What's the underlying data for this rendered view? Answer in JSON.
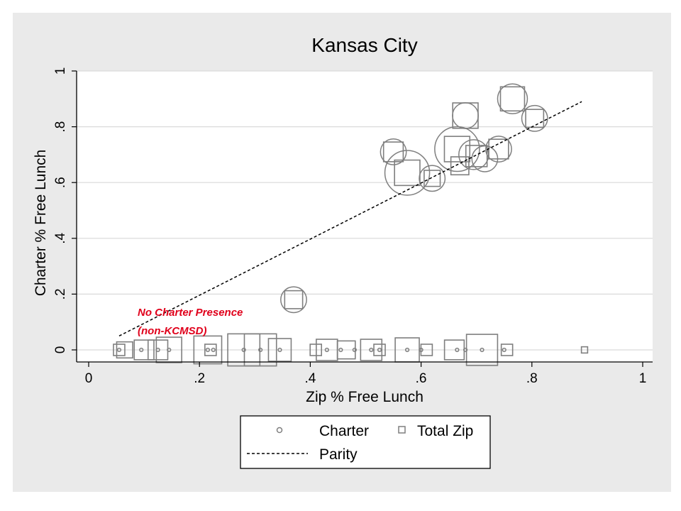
{
  "chart_data": {
    "type": "scatter",
    "title": "Kansas City",
    "xlabel": "Zip % Free Lunch",
    "ylabel": "Charter % Free Lunch",
    "xlim": [
      0,
      1
    ],
    "ylim": [
      0,
      1
    ],
    "x_ticks": [
      "0",
      ".2",
      ".4",
      ".6",
      ".8",
      "1"
    ],
    "y_ticks": [
      "0",
      ".2",
      ".4",
      ".6",
      ".8",
      "1"
    ],
    "grid": true,
    "legend_position": "bottom",
    "colors": {
      "frame": "#eaeaea",
      "plot": "#ffffff",
      "marker": "#7f7f7f",
      "grid": "#d9d9d9",
      "parity": "#000000",
      "annotation": "#e0001b"
    },
    "annotation": {
      "lines": [
        "No Charter Presence",
        "(non-KCMSD)"
      ],
      "x": 0.09,
      "y": 0.12
    },
    "series": [
      {
        "name": "Charter",
        "marker": "circle",
        "points": [
          {
            "x": 0.37,
            "y": 0.18,
            "size": 3
          },
          {
            "x": 0.55,
            "y": 0.71,
            "size": 3
          },
          {
            "x": 0.575,
            "y": 0.635,
            "size": 9
          },
          {
            "x": 0.62,
            "y": 0.615,
            "size": 3
          },
          {
            "x": 0.665,
            "y": 0.72,
            "size": 9
          },
          {
            "x": 0.68,
            "y": 0.84,
            "size": 3
          },
          {
            "x": 0.695,
            "y": 0.7,
            "size": 4
          },
          {
            "x": 0.715,
            "y": 0.685,
            "size": 3
          },
          {
            "x": 0.74,
            "y": 0.72,
            "size": 3
          },
          {
            "x": 0.765,
            "y": 0.9,
            "size": 4
          },
          {
            "x": 0.805,
            "y": 0.83,
            "size": 3
          },
          {
            "x": 0.055,
            "y": 0.0,
            "size": 0.05
          },
          {
            "x": 0.095,
            "y": 0.0,
            "size": 0.05
          },
          {
            "x": 0.125,
            "y": 0.0,
            "size": 0.05
          },
          {
            "x": 0.145,
            "y": 0.0,
            "size": 0.05
          },
          {
            "x": 0.215,
            "y": 0.0,
            "size": 0.05
          },
          {
            "x": 0.225,
            "y": 0.0,
            "size": 0.05
          },
          {
            "x": 0.28,
            "y": 0.0,
            "size": 0.05
          },
          {
            "x": 0.31,
            "y": 0.0,
            "size": 0.05
          },
          {
            "x": 0.345,
            "y": 0.0,
            "size": 0.05
          },
          {
            "x": 0.43,
            "y": 0.0,
            "size": 0.05
          },
          {
            "x": 0.455,
            "y": 0.0,
            "size": 0.05
          },
          {
            "x": 0.48,
            "y": 0.0,
            "size": 0.05
          },
          {
            "x": 0.51,
            "y": 0.0,
            "size": 0.05
          },
          {
            "x": 0.525,
            "y": 0.0,
            "size": 0.05
          },
          {
            "x": 0.575,
            "y": 0.0,
            "size": 0.05
          },
          {
            "x": 0.6,
            "y": 0.0,
            "size": 0.05
          },
          {
            "x": 0.665,
            "y": 0.0,
            "size": 0.05
          },
          {
            "x": 0.68,
            "y": 0.0,
            "size": 0.05
          },
          {
            "x": 0.71,
            "y": 0.0,
            "size": 0.05
          },
          {
            "x": 0.75,
            "y": 0.0,
            "size": 0.05
          }
        ]
      },
      {
        "name": "Total Zip",
        "marker": "square",
        "points": [
          {
            "x": 0.37,
            "y": 0.18,
            "size": 2.5
          },
          {
            "x": 0.55,
            "y": 0.71,
            "size": 3
          },
          {
            "x": 0.575,
            "y": 0.635,
            "size": 5
          },
          {
            "x": 0.62,
            "y": 0.615,
            "size": 2
          },
          {
            "x": 0.665,
            "y": 0.72,
            "size": 5
          },
          {
            "x": 0.68,
            "y": 0.84,
            "size": 5
          },
          {
            "x": 0.67,
            "y": 0.66,
            "size": 2.5
          },
          {
            "x": 0.7,
            "y": 0.695,
            "size": 3.5
          },
          {
            "x": 0.74,
            "y": 0.72,
            "size": 3
          },
          {
            "x": 0.765,
            "y": 0.9,
            "size": 4.5
          },
          {
            "x": 0.805,
            "y": 0.83,
            "size": 2.5
          },
          {
            "x": 0.055,
            "y": 0.0,
            "size": 1
          },
          {
            "x": 0.065,
            "y": 0.0,
            "size": 2
          },
          {
            "x": 0.1,
            "y": 0.0,
            "size": 3
          },
          {
            "x": 0.125,
            "y": 0.0,
            "size": 3
          },
          {
            "x": 0.145,
            "y": 0.0,
            "size": 5
          },
          {
            "x": 0.215,
            "y": 0.0,
            "size": 6
          },
          {
            "x": 0.22,
            "y": 0.0,
            "size": 1
          },
          {
            "x": 0.28,
            "y": 0.0,
            "size": 8
          },
          {
            "x": 0.31,
            "y": 0.0,
            "size": 8
          },
          {
            "x": 0.345,
            "y": 0.0,
            "size": 4
          },
          {
            "x": 0.41,
            "y": 0.0,
            "size": 1
          },
          {
            "x": 0.43,
            "y": 0.0,
            "size": 3.5
          },
          {
            "x": 0.465,
            "y": 0.0,
            "size": 2.5
          },
          {
            "x": 0.51,
            "y": 0.0,
            "size": 3.5
          },
          {
            "x": 0.525,
            "y": 0.0,
            "size": 1
          },
          {
            "x": 0.575,
            "y": 0.0,
            "size": 4.5
          },
          {
            "x": 0.61,
            "y": 0.0,
            "size": 1
          },
          {
            "x": 0.66,
            "y": 0.0,
            "size": 3
          },
          {
            "x": 0.71,
            "y": 0.0,
            "size": 7.5
          },
          {
            "x": 0.755,
            "y": 0.0,
            "size": 1
          },
          {
            "x": 0.895,
            "y": 0.0,
            "size": 0.3
          }
        ]
      },
      {
        "name": "Parity",
        "marker": "dashed-line",
        "points": [
          {
            "x": 0.055,
            "y": 0.05
          },
          {
            "x": 0.89,
            "y": 0.89
          }
        ]
      }
    ],
    "legend": {
      "entries": [
        "Charter",
        "Total Zip",
        "Parity"
      ]
    }
  }
}
